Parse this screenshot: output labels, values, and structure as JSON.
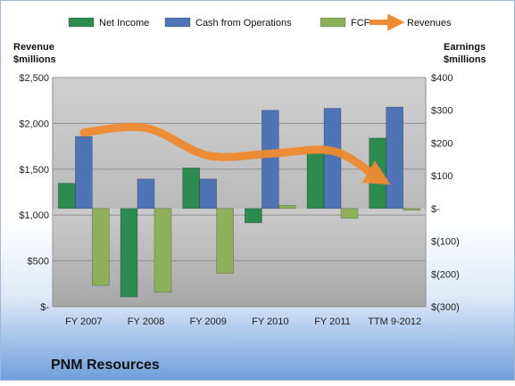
{
  "chart_data": {
    "type": "bar",
    "categories": [
      "FY 2007",
      "FY 2008",
      "FY 2009",
      "FY 2010",
      "FY 2011",
      "TTM 9-2012"
    ],
    "series": [
      {
        "name": "Net Income",
        "axis": "right",
        "color": "#2e8b50",
        "values": [
          77,
          -270,
          124,
          -44,
          171,
          215
        ]
      },
      {
        "name": "Cash from Operations",
        "axis": "right",
        "color": "#4f74b6",
        "values": [
          220,
          90,
          90,
          300,
          306,
          310
        ]
      },
      {
        "name": "FCF",
        "axis": "right",
        "color": "#8fb05a",
        "values": [
          -235,
          -256,
          -198,
          10,
          -30,
          -3
        ]
      },
      {
        "name": "Revenues",
        "axis": "left",
        "color": "#f08a30",
        "type": "line",
        "values": [
          1900,
          1950,
          1650,
          1670,
          1700,
          1430
        ]
      }
    ],
    "left_axis": {
      "title_line1": "Revenue",
      "title_line2": "$millions",
      "ylim": [
        0,
        2500
      ],
      "ticks": [
        0,
        500,
        1000,
        1500,
        2000,
        2500
      ],
      "tick_labels": [
        "$-",
        "$500",
        "$1,000",
        "$1,500",
        "$2,000",
        "$2,500"
      ]
    },
    "right_axis": {
      "title_line1": "Earnings",
      "title_line2": "$millions",
      "ylim": [
        -300,
        400
      ],
      "ticks": [
        -300,
        -200,
        -100,
        0,
        100,
        200,
        300,
        400
      ],
      "tick_labels": [
        "$(300)",
        "$(200)",
        "$(100)",
        "$-",
        "$100",
        "$200",
        "$300",
        "$400"
      ]
    },
    "legend": {
      "placement": "top",
      "entries": [
        "Net Income",
        "Cash from Operations",
        "FCF",
        "Revenues"
      ]
    },
    "grid": true,
    "caption": "PNM Resources"
  }
}
